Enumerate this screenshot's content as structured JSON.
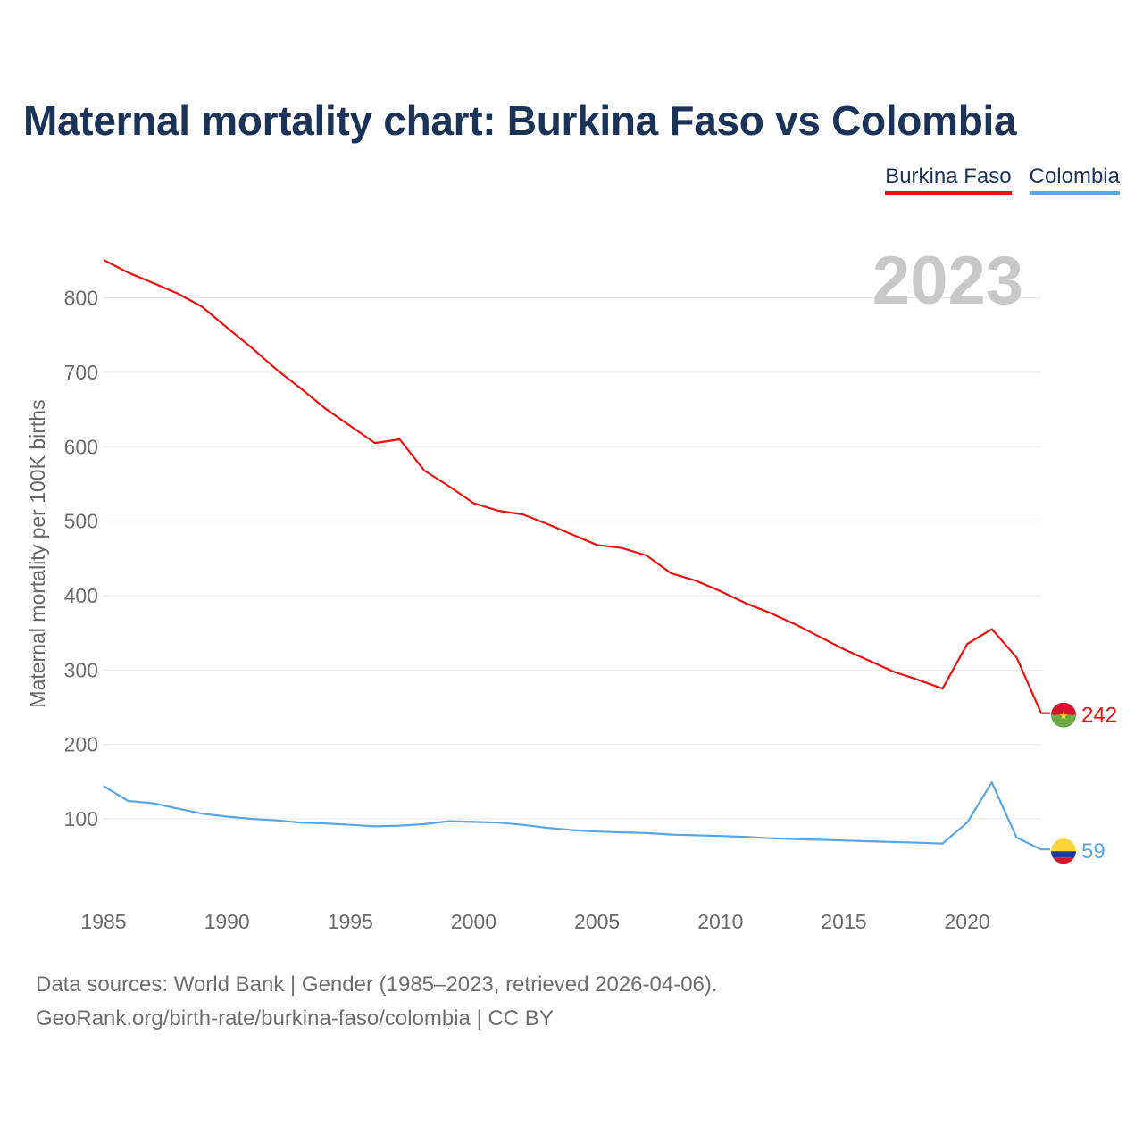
{
  "title": "Maternal mortality chart: Burkina Faso vs Colombia",
  "legend": {
    "items": [
      {
        "label": "Burkina Faso",
        "color": "#ee1111"
      },
      {
        "label": "Colombia",
        "color": "#5aa5e6"
      }
    ]
  },
  "footer": {
    "line1": "Data sources: World Bank | Gender (1985–2023, retrieved 2026-04-06).",
    "line2": "GeoRank.org/birth-rate/burkina-faso/colombia | CC BY"
  },
  "chart_data": {
    "type": "line",
    "title": "Maternal mortality chart: Burkina Faso vs Colombia",
    "ylabel": "Maternal mortality per 100K births",
    "xlabel": "",
    "year_label": "2023",
    "xlim": [
      1985,
      2023
    ],
    "ylim": [
      0,
      850
    ],
    "x_ticks": [
      1985,
      1990,
      1995,
      2000,
      2005,
      2010,
      2015,
      2020
    ],
    "y_ticks": [
      100,
      200,
      300,
      400,
      500,
      600,
      700,
      800
    ],
    "grid": true,
    "x": [
      1985,
      1986,
      1987,
      1988,
      1989,
      1990,
      1991,
      1992,
      1993,
      1994,
      1995,
      1996,
      1997,
      1998,
      1999,
      2000,
      2001,
      2002,
      2003,
      2004,
      2005,
      2006,
      2007,
      2008,
      2009,
      2010,
      2011,
      2012,
      2013,
      2014,
      2015,
      2016,
      2017,
      2018,
      2019,
      2020,
      2021,
      2022,
      2023
    ],
    "series": [
      {
        "name": "Burkina Faso",
        "color": "#ee1111",
        "end_label": "242",
        "flag": "burkina-faso-flag-icon",
        "values": [
          851,
          834,
          820,
          806,
          788,
          760,
          733,
          704,
          678,
          651,
          628,
          605,
          610,
          568,
          547,
          524,
          514,
          509,
          496,
          482,
          468,
          464,
          454,
          430,
          420,
          406,
          390,
          377,
          362,
          345,
          328,
          313,
          298,
          287,
          275,
          335,
          355,
          317,
          242
        ]
      },
      {
        "name": "Colombia",
        "color": "#5aa5e6",
        "end_label": "59",
        "flag": "colombia-flag-icon",
        "values": [
          144,
          124,
          121,
          114,
          107,
          103,
          100,
          98,
          95,
          94,
          92,
          90,
          91,
          93,
          97,
          96,
          95,
          92,
          88,
          85,
          83,
          82,
          81,
          79,
          78,
          77,
          76,
          74,
          73,
          72,
          71,
          70,
          69,
          68,
          67,
          95,
          149,
          75,
          59
        ]
      }
    ]
  }
}
